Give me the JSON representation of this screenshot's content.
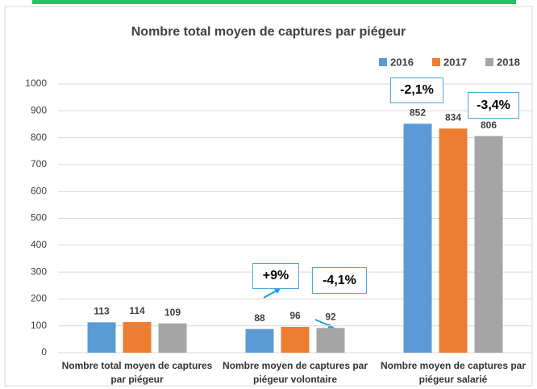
{
  "chart_data": {
    "type": "bar",
    "title": "Nombre total moyen de captures par piégeur",
    "categories": [
      "Nombre total moyen de captures par piégeur",
      "Nombre moyen de captures par piégeur volontaire",
      "Nombre moyen de captures par piégeur salarié"
    ],
    "series": [
      {
        "name": "2016",
        "color": "#5b9bd5",
        "values": [
          113,
          88,
          852
        ]
      },
      {
        "name": "2017",
        "color": "#ed7d31",
        "values": [
          114,
          96,
          834
        ]
      },
      {
        "name": "2018",
        "color": "#a5a5a5",
        "values": [
          109,
          92,
          806
        ]
      }
    ],
    "ylim": [
      0,
      1000
    ],
    "yticks": [
      0,
      100,
      200,
      300,
      400,
      500,
      600,
      700,
      800,
      900,
      1000
    ],
    "grid": true,
    "legend": "top-right",
    "annotations": [
      "+9%",
      "-4,1%",
      "-2,1%",
      "-3,4%"
    ]
  }
}
